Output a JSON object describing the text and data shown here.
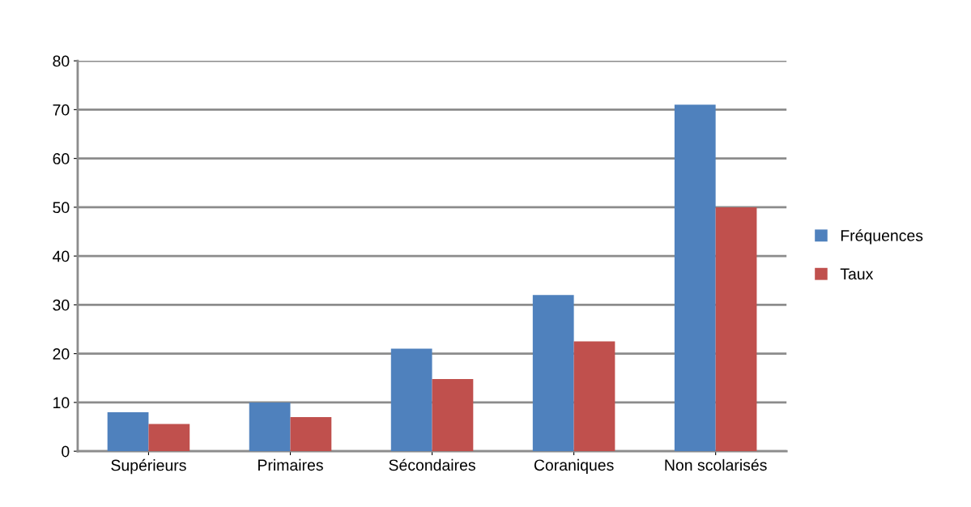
{
  "chart_data": {
    "type": "bar",
    "categories": [
      "Supérieurs",
      "Primaires",
      "Sécondaires",
      "Coraniques",
      "Non scolarisés"
    ],
    "series": [
      {
        "name": "Fréquences",
        "color": "#4f81bd",
        "values": [
          8,
          10,
          21,
          32,
          71
        ]
      },
      {
        "name": "Taux",
        "color": "#c0504d",
        "values": [
          5.6,
          7,
          14.8,
          22.5,
          50
        ]
      }
    ],
    "ylim": [
      0,
      80
    ],
    "yticks": [
      0,
      10,
      20,
      30,
      40,
      50,
      60,
      70,
      80
    ],
    "grid": "y",
    "legend": "right"
  }
}
